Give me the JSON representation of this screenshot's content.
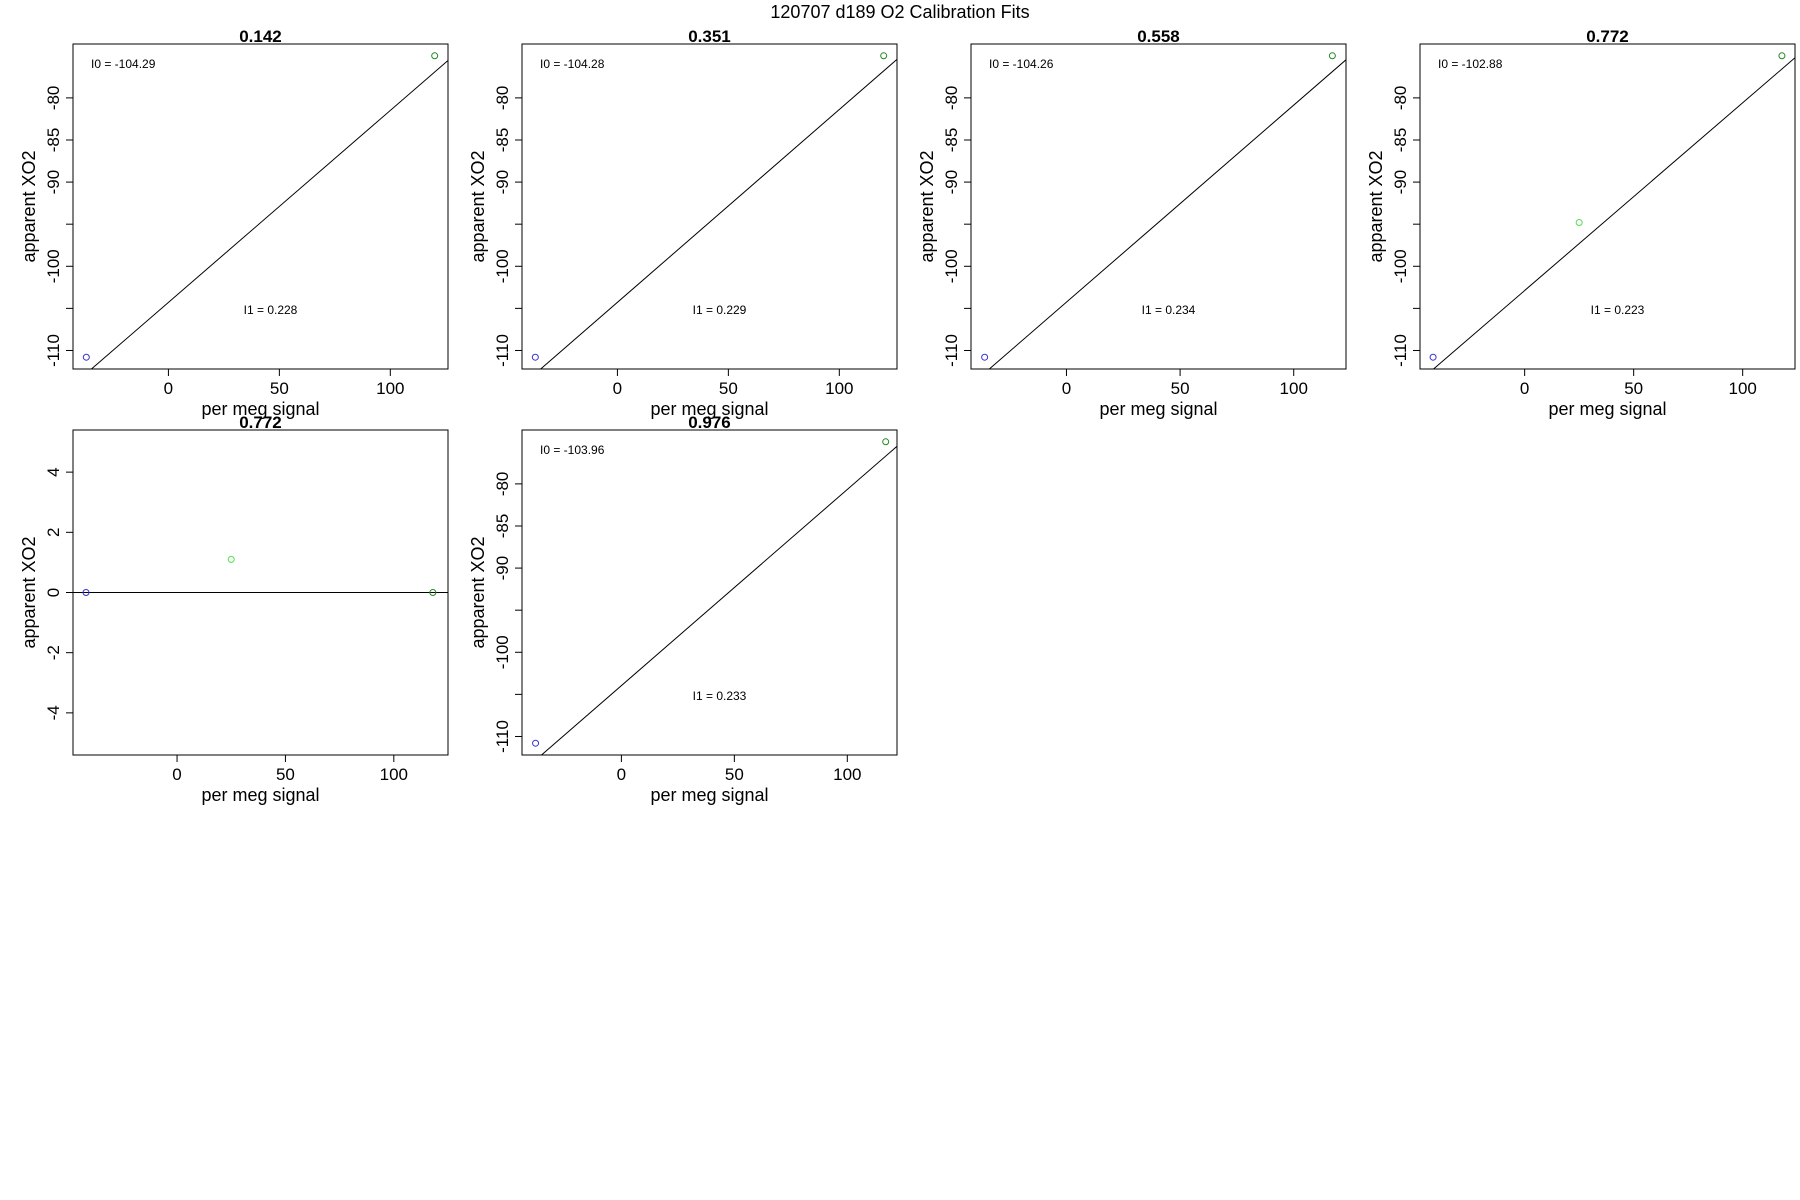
{
  "figure_title": "120707   d189   O2 Calibration Fits",
  "colors": {
    "low_point": "#3333cc",
    "mid_point": "#55dd55",
    "high_point": "#228822",
    "line": "#000000"
  },
  "chart_data": [
    {
      "type": "scatter",
      "title": "0.142",
      "xlabel": "per meg signal",
      "ylabel": "apparent XO2",
      "xlim": [
        -43,
        126
      ],
      "ylim": [
        -112.2,
        -73.6
      ],
      "xticks": [
        0,
        50,
        100
      ],
      "yticks": [
        -110,
        -105,
        -100,
        -95,
        -90,
        -85,
        -80
      ],
      "ytick_labels": [
        "-110",
        "",
        "-100",
        "",
        "-90",
        "-85",
        "-80"
      ],
      "points": [
        {
          "x": -37,
          "y": -110.8,
          "color": "low_point"
        },
        {
          "x": 120,
          "y": -75.0,
          "color": "high_point"
        }
      ],
      "fit_line": {
        "slope": 0.228,
        "intercept": -104.29
      },
      "annotations": [
        {
          "text": "I0 =  -104.29",
          "pos": "top-left"
        },
        {
          "text": "I1 =  0.228",
          "pos": "lower-center"
        }
      ]
    },
    {
      "type": "scatter",
      "title": "0.351",
      "xlabel": "per meg signal",
      "ylabel": "apparent XO2",
      "xlim": [
        -43,
        126
      ],
      "ylim": [
        -112.2,
        -73.6
      ],
      "xticks": [
        0,
        50,
        100
      ],
      "yticks": [
        -110,
        -105,
        -100,
        -95,
        -90,
        -85,
        -80
      ],
      "ytick_labels": [
        "-110",
        "",
        "-100",
        "",
        "-90",
        "-85",
        "-80"
      ],
      "points": [
        {
          "x": -37,
          "y": -110.8,
          "color": "low_point"
        },
        {
          "x": 120,
          "y": -75.0,
          "color": "high_point"
        }
      ],
      "fit_line": {
        "slope": 0.229,
        "intercept": -104.28
      },
      "annotations": [
        {
          "text": "I0 =  -104.28",
          "pos": "top-left"
        },
        {
          "text": "I1 =  0.229",
          "pos": "lower-center"
        }
      ]
    },
    {
      "type": "scatter",
      "title": "0.558",
      "xlabel": "per meg signal",
      "ylabel": "apparent XO2",
      "xlim": [
        -42,
        123
      ],
      "ylim": [
        -112.2,
        -73.6
      ],
      "xticks": [
        0,
        50,
        100
      ],
      "yticks": [
        -110,
        -105,
        -100,
        -95,
        -90,
        -85,
        -80
      ],
      "ytick_labels": [
        "-110",
        "",
        "-100",
        "",
        "-90",
        "-85",
        "-80"
      ],
      "points": [
        {
          "x": -36,
          "y": -110.8,
          "color": "low_point"
        },
        {
          "x": 117,
          "y": -75.0,
          "color": "high_point"
        }
      ],
      "fit_line": {
        "slope": 0.234,
        "intercept": -104.26
      },
      "annotations": [
        {
          "text": "I0 =  -104.26",
          "pos": "top-left"
        },
        {
          "text": "I1 =  0.234",
          "pos": "lower-center"
        }
      ]
    },
    {
      "type": "scatter",
      "title": "0.772",
      "xlabel": "per meg signal",
      "ylabel": "apparent XO2",
      "xlim": [
        -48,
        124
      ],
      "ylim": [
        -112.2,
        -73.6
      ],
      "xticks": [
        0,
        50,
        100
      ],
      "yticks": [
        -110,
        -105,
        -100,
        -95,
        -90,
        -85,
        -80
      ],
      "ytick_labels": [
        "-110",
        "",
        "-100",
        "",
        "-90",
        "-85",
        "-80"
      ],
      "points": [
        {
          "x": -42,
          "y": -110.8,
          "color": "low_point"
        },
        {
          "x": 25,
          "y": -94.8,
          "color": "mid_point"
        },
        {
          "x": 118,
          "y": -75.0,
          "color": "high_point"
        }
      ],
      "fit_line": {
        "slope": 0.223,
        "intercept": -102.88
      },
      "annotations": [
        {
          "text": "I0 =  -102.88",
          "pos": "top-left"
        },
        {
          "text": "I1 =  0.223",
          "pos": "lower-center"
        }
      ]
    },
    {
      "type": "scatter",
      "title": "0.772",
      "xlabel": "per meg signal",
      "ylabel": "apparent XO2",
      "xlim": [
        -48,
        125
      ],
      "ylim": [
        -5.4,
        5.4
      ],
      "xticks": [
        0,
        50,
        100
      ],
      "yticks": [
        -4,
        -2,
        0,
        2,
        4
      ],
      "ytick_labels": [
        "-4",
        "-2",
        "0",
        "2",
        "4"
      ],
      "points": [
        {
          "x": -42,
          "y": 0,
          "color": "low_point"
        },
        {
          "x": 25,
          "y": 1.1,
          "color": "mid_point"
        },
        {
          "x": 118,
          "y": 0,
          "color": "high_point"
        }
      ],
      "fit_line": {
        "slope": 0,
        "intercept": 0
      },
      "annotations": []
    },
    {
      "type": "scatter",
      "title": "0.976",
      "xlabel": "per meg signal",
      "ylabel": "apparent XO2",
      "xlim": [
        -44,
        122
      ],
      "ylim": [
        -112.2,
        -73.6
      ],
      "xticks": [
        0,
        50,
        100
      ],
      "yticks": [
        -110,
        -105,
        -100,
        -95,
        -90,
        -85,
        -80
      ],
      "ytick_labels": [
        "-110",
        "",
        "-100",
        "",
        "-90",
        "-85",
        "-80"
      ],
      "points": [
        {
          "x": -38,
          "y": -110.8,
          "color": "low_point"
        },
        {
          "x": 117,
          "y": -75.0,
          "color": "high_point"
        }
      ],
      "fit_line": {
        "slope": 0.233,
        "intercept": -103.96
      },
      "annotations": [
        {
          "text": "I0 =  -103.96",
          "pos": "top-left"
        },
        {
          "text": "I1 =  0.233",
          "pos": "lower-center"
        }
      ]
    }
  ]
}
